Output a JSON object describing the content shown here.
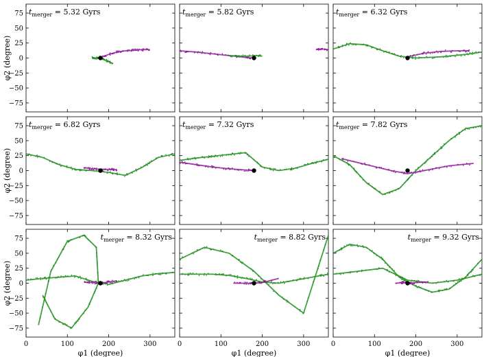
{
  "figure": {
    "xlabel": "φ1 (degree)",
    "ylabel": "φ2 (degree)",
    "xticks": [
      0,
      100,
      200,
      300
    ],
    "yticks": [
      75,
      50,
      25,
      0,
      -25,
      -50,
      -75
    ],
    "xlim": [
      0,
      360
    ],
    "ylim": [
      -90,
      90
    ]
  },
  "colors": {
    "stream_a": "#1f8f1f",
    "stream_b": "#8e1a9a",
    "progenitor": "#000000"
  },
  "chart_data": [
    {
      "type": "scatter",
      "title": "t_merger = 5.32 Gyrs",
      "title_main": "t",
      "title_sub": "merger",
      "title_rest": " = 5.32 Gyrs",
      "title_position": "top-left",
      "progenitor": [
        180,
        0
      ],
      "series": [
        {
          "name": "stream_b",
          "x": [
            180,
            200,
            220,
            240,
            260,
            280,
            300
          ],
          "y": [
            1,
            6,
            10,
            12,
            13,
            14,
            14
          ]
        },
        {
          "name": "stream_a",
          "x": [
            160,
            170,
            180,
            190,
            200,
            210
          ],
          "y": [
            1,
            0,
            -1,
            -3,
            -6,
            -9
          ]
        }
      ]
    },
    {
      "type": "scatter",
      "title": "t_merger = 5.82 Gyrs",
      "title_main": "t",
      "title_sub": "merger",
      "title_rest": " = 5.82 Gyrs",
      "title_position": "top-left",
      "progenitor": [
        180,
        0
      ],
      "series": [
        {
          "name": "stream_b",
          "x": [
            0,
            40,
            80,
            120,
            160,
            180
          ],
          "y": [
            12,
            10,
            7,
            4,
            1,
            0
          ]
        },
        {
          "name": "stream_a",
          "x": [
            120,
            160,
            190,
            200
          ],
          "y": [
            4,
            3,
            4,
            3
          ]
        },
        {
          "name": "stream_b_far",
          "x": [
            330,
            345,
            360
          ],
          "y": [
            14,
            15,
            14
          ]
        }
      ]
    },
    {
      "type": "scatter",
      "title": "t_merger = 6.32 Gyrs",
      "title_main": "t",
      "title_sub": "merger",
      "title_rest": " = 6.32 Gyrs",
      "title_position": "top-left",
      "progenitor": [
        180,
        0
      ],
      "series": [
        {
          "name": "stream_b",
          "x": [
            180,
            220,
            260,
            300,
            330
          ],
          "y": [
            2,
            8,
            11,
            12,
            12
          ]
        },
        {
          "name": "stream_a",
          "x": [
            0,
            40,
            80,
            120,
            160,
            200,
            260,
            320,
            360
          ],
          "y": [
            15,
            24,
            22,
            12,
            3,
            0,
            2,
            6,
            10
          ]
        }
      ]
    },
    {
      "type": "scatter",
      "title": "t_merger = 6.82 Gyrs",
      "title_main": "t",
      "title_sub": "merger",
      "title_rest": " = 6.82 Gyrs",
      "title_position": "top-left",
      "progenitor": [
        180,
        0
      ],
      "series": [
        {
          "name": "stream_a",
          "x": [
            0,
            40,
            80,
            120,
            160,
            200,
            240,
            280,
            320,
            360
          ],
          "y": [
            28,
            22,
            10,
            2,
            0,
            -3,
            -8,
            5,
            22,
            28
          ]
        },
        {
          "name": "stream_b",
          "x": [
            140,
            160,
            190,
            210,
            220
          ],
          "y": [
            5,
            3,
            2,
            2,
            1
          ]
        }
      ]
    },
    {
      "type": "scatter",
      "title": "t_merger = 7.32 Gyrs",
      "title_main": "t",
      "title_sub": "merger",
      "title_rest": " = 7.32 Gyrs",
      "title_position": "top-left",
      "progenitor": [
        180,
        0
      ],
      "series": [
        {
          "name": "stream_a",
          "x": [
            0,
            40,
            80,
            120,
            160,
            200,
            240,
            280,
            320,
            360
          ],
          "y": [
            17,
            21,
            24,
            27,
            30,
            6,
            0,
            4,
            12,
            19
          ]
        },
        {
          "name": "stream_b",
          "x": [
            0,
            40,
            80,
            120,
            160,
            180
          ],
          "y": [
            14,
            10,
            6,
            3,
            1,
            0
          ]
        }
      ]
    },
    {
      "type": "scatter",
      "title": "t_merger = 7.82 Gyrs",
      "title_main": "t",
      "title_sub": "merger",
      "title_rest": " = 7.82 Gyrs",
      "title_position": "top-left",
      "progenitor": [
        180,
        0
      ],
      "series": [
        {
          "name": "stream_a",
          "x": [
            0,
            40,
            80,
            120,
            160,
            200,
            240,
            280,
            320,
            360
          ],
          "y": [
            25,
            10,
            -20,
            -40,
            -30,
            0,
            25,
            50,
            70,
            75
          ]
        },
        {
          "name": "stream_b",
          "x": [
            20,
            80,
            140,
            180,
            220,
            280,
            340
          ],
          "y": [
            20,
            10,
            0,
            -5,
            0,
            8,
            12
          ]
        }
      ]
    },
    {
      "type": "scatter",
      "title": "t_merger = 8.32 Gyrs",
      "title_main": "t",
      "title_sub": "merger",
      "title_rest": " = 8.32 Gyrs",
      "title_position": "top-right",
      "progenitor": [
        180,
        0
      ],
      "series": [
        {
          "name": "stream_a",
          "x": [
            0,
            40,
            80,
            120,
            160,
            200,
            240,
            280,
            320,
            360
          ],
          "y": [
            5,
            8,
            10,
            12,
            3,
            -2,
            5,
            12,
            16,
            18
          ]
        },
        {
          "name": "stream_a_loop",
          "x": [
            30,
            60,
            100,
            140,
            170,
            175,
            150,
            110,
            70,
            40
          ],
          "y": [
            -70,
            20,
            70,
            80,
            60,
            0,
            -40,
            -75,
            -60,
            -20
          ]
        },
        {
          "name": "stream_b",
          "x": [
            140,
            160,
            180,
            200,
            220
          ],
          "y": [
            2,
            1,
            0,
            2,
            4
          ]
        }
      ]
    },
    {
      "type": "scatter",
      "title": "t_merger = 8.82 Gyrs",
      "title_main": "t",
      "title_sub": "merger",
      "title_rest": " = 8.82 Gyrs",
      "title_position": "top-right",
      "progenitor": [
        180,
        0
      ],
      "series": [
        {
          "name": "stream_a",
          "x": [
            0,
            40,
            80,
            120,
            160,
            200,
            240,
            280,
            320,
            360
          ],
          "y": [
            15,
            15,
            15,
            13,
            8,
            2,
            0,
            5,
            10,
            15
          ]
        },
        {
          "name": "stream_a_arc",
          "x": [
            0,
            60,
            120,
            180,
            240,
            300,
            360
          ],
          "y": [
            40,
            60,
            50,
            20,
            -20,
            -50,
            80
          ]
        },
        {
          "name": "stream_b",
          "x": [
            130,
            160,
            180,
            200,
            240
          ],
          "y": [
            0,
            0,
            0,
            1,
            8
          ]
        }
      ]
    },
    {
      "type": "scatter",
      "title": "t_merger = 9.32 Gyrs",
      "title_main": "t",
      "title_sub": "merger",
      "title_rest": " = 9.32 Gyrs",
      "title_position": "top-right",
      "progenitor": [
        180,
        0
      ],
      "series": [
        {
          "name": "stream_a",
          "x": [
            0,
            40,
            80,
            120,
            160,
            200,
            240,
            280,
            320,
            360
          ],
          "y": [
            50,
            65,
            60,
            40,
            10,
            -5,
            -15,
            -10,
            10,
            40
          ]
        },
        {
          "name": "stream_a_band",
          "x": [
            0,
            60,
            120,
            180,
            240,
            300,
            360
          ],
          "y": [
            15,
            20,
            25,
            5,
            0,
            5,
            15
          ]
        },
        {
          "name": "stream_b",
          "x": [
            150,
            170,
            180,
            200,
            230
          ],
          "y": [
            0,
            1,
            0,
            1,
            2
          ]
        }
      ]
    }
  ]
}
